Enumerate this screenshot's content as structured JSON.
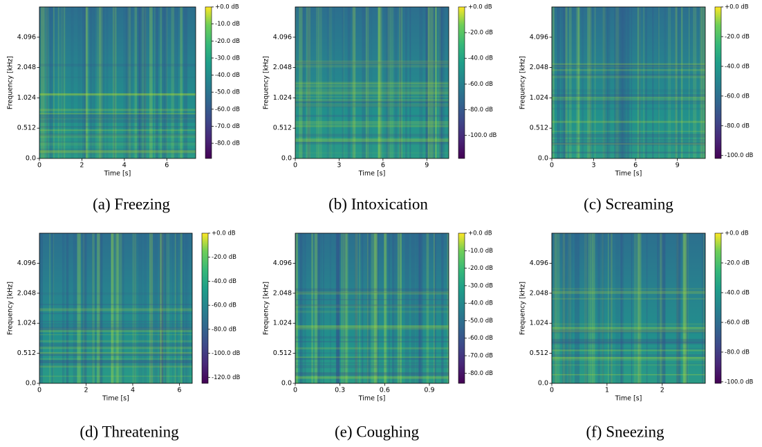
{
  "chart_data": [
    {
      "type": "spectrogram",
      "caption": "(a) Freezing",
      "xlabel": "Time [s]",
      "ylabel": "Frequency [kHz]",
      "xlim": [
        0,
        7.36
      ],
      "xticks": [
        0,
        2,
        4,
        6
      ],
      "ylim": [
        0,
        8.192
      ],
      "yscale": "symlog",
      "linthresh": 1.024,
      "yticks": [
        {
          "value": 0,
          "label": "0.0"
        },
        0.512,
        1.024,
        2.048,
        4.096
      ],
      "colormap": "viridis",
      "clim": [
        -88.9,
        0
      ],
      "cticks": [
        {
          "value": 0,
          "label": "+0.0 dB"
        },
        {
          "value": -10,
          "label": "-10.0 dB"
        },
        {
          "value": -20,
          "label": "-20.0 dB"
        },
        {
          "value": -30,
          "label": "-30.0 dB"
        },
        {
          "value": -40,
          "label": "-40.0 dB"
        },
        {
          "value": -50,
          "label": "-50.0 dB"
        },
        {
          "value": -60,
          "label": "-60.0 dB"
        },
        {
          "value": -70,
          "label": "-70.0 dB"
        },
        {
          "value": -80,
          "label": "-80.0 dB"
        }
      ]
    },
    {
      "type": "spectrogram",
      "caption": "(b) Intoxication",
      "xlabel": "Time [s]",
      "ylabel": "Frequency [kHz]",
      "xlim": [
        0,
        10.5
      ],
      "xticks": [
        0,
        3,
        6,
        9
      ],
      "ylim": [
        0,
        8.192
      ],
      "yscale": "symlog",
      "linthresh": 1.024,
      "yticks": [
        {
          "value": 0,
          "label": "0.0"
        },
        0.512,
        1.024,
        2.048,
        4.096
      ],
      "colormap": "viridis",
      "clim": [
        -118,
        0
      ],
      "cticks": [
        {
          "value": 0,
          "label": "+0.0 dB"
        },
        {
          "value": -20,
          "label": "-20.0 dB"
        },
        {
          "value": -40,
          "label": "-40.0 dB"
        },
        {
          "value": -60,
          "label": "-60.0 dB"
        },
        {
          "value": -80,
          "label": "-80.0 dB"
        },
        {
          "value": -100,
          "label": "-100.0 dB"
        }
      ]
    },
    {
      "type": "spectrogram",
      "caption": "(c) Screaming",
      "xlabel": "Time [s]",
      "ylabel": "Frequency [kHz]",
      "xlim": [
        0,
        11
      ],
      "xticks": [
        0,
        3,
        6,
        9
      ],
      "ylim": [
        0,
        8.192
      ],
      "yscale": "symlog",
      "linthresh": 1.024,
      "yticks": [
        {
          "value": 0,
          "label": "0.0"
        },
        0.512,
        1.024,
        2.048,
        4.096
      ],
      "colormap": "viridis",
      "clim": [
        -102,
        0
      ],
      "cticks": [
        {
          "value": 0,
          "label": "+0.0 dB"
        },
        {
          "value": -20,
          "label": "-20.0 dB"
        },
        {
          "value": -40,
          "label": "-40.0 dB"
        },
        {
          "value": -60,
          "label": "-60.0 dB"
        },
        {
          "value": -80,
          "label": "-80.0 dB"
        },
        {
          "value": -100,
          "label": "-100.0 dB"
        }
      ]
    },
    {
      "type": "spectrogram",
      "caption": "(d) Threatening",
      "xlabel": "Time [s]",
      "ylabel": "Frequency [kHz]",
      "xlim": [
        0,
        6.55
      ],
      "xticks": [
        0,
        2,
        4,
        6
      ],
      "ylim": [
        0,
        8.192
      ],
      "yscale": "symlog",
      "linthresh": 1.024,
      "yticks": [
        {
          "value": 0,
          "label": "0.0"
        },
        0.512,
        1.024,
        2.048,
        4.096
      ],
      "colormap": "viridis",
      "clim": [
        -125,
        0
      ],
      "cticks": [
        {
          "value": 0,
          "label": "+0.0 dB"
        },
        {
          "value": -20,
          "label": "-20.0 dB"
        },
        {
          "value": -40,
          "label": "-40.0 dB"
        },
        {
          "value": -60,
          "label": "-60.0 dB"
        },
        {
          "value": -80,
          "label": "-80.0 dB"
        },
        {
          "value": -100,
          "label": "-100.0 dB"
        },
        {
          "value": -120,
          "label": "-120.0 dB"
        }
      ]
    },
    {
      "type": "spectrogram",
      "caption": "(e) Coughing",
      "xlabel": "Time [s]",
      "ylabel": "Frequency [kHz]",
      "xlim": [
        0,
        1.03
      ],
      "xticks": [
        0,
        0.3,
        0.6,
        0.9
      ],
      "ylim": [
        0,
        8.192
      ],
      "yscale": "symlog",
      "linthresh": 1.024,
      "yticks": [
        {
          "value": 0,
          "label": "0.0"
        },
        0.512,
        1.024,
        2.048,
        4.096
      ],
      "colormap": "viridis",
      "clim": [
        -85.8,
        0
      ],
      "cticks": [
        {
          "value": 0,
          "label": "+0.0 dB"
        },
        {
          "value": -10,
          "label": "-10.0 dB"
        },
        {
          "value": -20,
          "label": "-20.0 dB"
        },
        {
          "value": -30,
          "label": "-30.0 dB"
        },
        {
          "value": -40,
          "label": "-40.0 dB"
        },
        {
          "value": -50,
          "label": "-50.0 dB"
        },
        {
          "value": -60,
          "label": "-60.0 dB"
        },
        {
          "value": -70,
          "label": "-70.0 dB"
        },
        {
          "value": -80,
          "label": "-80.0 dB"
        }
      ]
    },
    {
      "type": "spectrogram",
      "caption": "(f) Sneezing",
      "xlabel": "Time [s]",
      "ylabel": "Frequency [kHz]",
      "xlim": [
        0,
        2.78
      ],
      "xticks": [
        0,
        1,
        2
      ],
      "ylim": [
        0,
        8.192
      ],
      "yscale": "symlog",
      "linthresh": 1.024,
      "yticks": [
        {
          "value": 0,
          "label": "0.0"
        },
        0.512,
        1.024,
        2.048,
        4.096
      ],
      "colormap": "viridis",
      "clim": [
        -101,
        0
      ],
      "cticks": [
        {
          "value": 0,
          "label": "+0.0 dB"
        },
        {
          "value": -20,
          "label": "-20.0 dB"
        },
        {
          "value": -40,
          "label": "-40.0 dB"
        },
        {
          "value": -60,
          "label": "-60.0 dB"
        },
        {
          "value": -80,
          "label": "-80.0 dB"
        },
        {
          "value": -100,
          "label": "-100.0 dB"
        }
      ]
    }
  ]
}
